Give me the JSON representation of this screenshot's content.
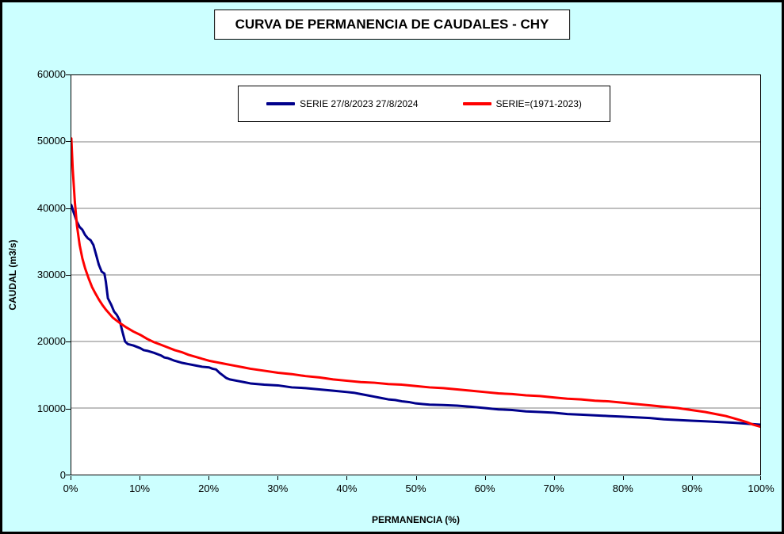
{
  "colors": {
    "background": "#CCFFFF",
    "plot_background": "#FFFFFF",
    "grid": "#7F7F7F",
    "axis": "#000000",
    "series_blue": "#00008B",
    "series_red": "#FF0000"
  },
  "chart_data": {
    "type": "line",
    "title": "CURVA DE PERMANENCIA DE CAUDALES - CHY",
    "xlabel": "PERMANENCIA (%)",
    "ylabel": "CAUDAL (m3/s)",
    "xlim": [
      0,
      100
    ],
    "ylim": [
      0,
      60000
    ],
    "x_ticks": [
      "0%",
      "10%",
      "20%",
      "30%",
      "40%",
      "50%",
      "60%",
      "70%",
      "80%",
      "90%",
      "100%"
    ],
    "y_ticks": [
      0,
      10000,
      20000,
      30000,
      40000,
      50000,
      60000
    ],
    "grid": "horizontal",
    "legend_position": "top-center-inside",
    "series": [
      {
        "name": "SERIE 27/8/2023 27/8/2024",
        "color": "#00008B",
        "width": 3,
        "points": [
          [
            0,
            40500
          ],
          [
            0.3,
            39500
          ],
          [
            0.8,
            38000
          ],
          [
            1.2,
            37200
          ],
          [
            1.6,
            36800
          ],
          [
            2,
            36000
          ],
          [
            2.4,
            35500
          ],
          [
            2.8,
            35200
          ],
          [
            3.2,
            34500
          ],
          [
            3.6,
            33000
          ],
          [
            4,
            31500
          ],
          [
            4.4,
            30500
          ],
          [
            4.8,
            30200
          ],
          [
            5,
            29000
          ],
          [
            5.3,
            26500
          ],
          [
            5.8,
            25500
          ],
          [
            6.2,
            24500
          ],
          [
            6.6,
            24000
          ],
          [
            7,
            23200
          ],
          [
            7.4,
            21500
          ],
          [
            7.8,
            20000
          ],
          [
            8.2,
            19600
          ],
          [
            9,
            19400
          ],
          [
            10,
            19000
          ],
          [
            10.5,
            18700
          ],
          [
            11,
            18600
          ],
          [
            12,
            18300
          ],
          [
            13,
            17900
          ],
          [
            13.5,
            17600
          ],
          [
            14,
            17500
          ],
          [
            15,
            17100
          ],
          [
            16,
            16800
          ],
          [
            17,
            16600
          ],
          [
            18,
            16400
          ],
          [
            19,
            16200
          ],
          [
            20,
            16100
          ],
          [
            20.5,
            15900
          ],
          [
            21,
            15800
          ],
          [
            21.5,
            15300
          ],
          [
            22,
            14900
          ],
          [
            22.5,
            14500
          ],
          [
            23,
            14300
          ],
          [
            24,
            14100
          ],
          [
            25,
            13900
          ],
          [
            26,
            13700
          ],
          [
            28,
            13500
          ],
          [
            30,
            13400
          ],
          [
            32,
            13100
          ],
          [
            34,
            13000
          ],
          [
            36,
            12800
          ],
          [
            38,
            12600
          ],
          [
            40,
            12400
          ],
          [
            41,
            12300
          ],
          [
            42,
            12100
          ],
          [
            43,
            11900
          ],
          [
            44,
            11700
          ],
          [
            45,
            11500
          ],
          [
            46,
            11300
          ],
          [
            47,
            11200
          ],
          [
            48,
            11000
          ],
          [
            49,
            10900
          ],
          [
            50,
            10700
          ],
          [
            51,
            10600
          ],
          [
            52,
            10500
          ],
          [
            54,
            10450
          ],
          [
            56,
            10350
          ],
          [
            58,
            10200
          ],
          [
            60,
            10000
          ],
          [
            62,
            9800
          ],
          [
            64,
            9700
          ],
          [
            66,
            9500
          ],
          [
            68,
            9400
          ],
          [
            70,
            9300
          ],
          [
            72,
            9100
          ],
          [
            74,
            9000
          ],
          [
            76,
            8900
          ],
          [
            78,
            8800
          ],
          [
            80,
            8700
          ],
          [
            82,
            8600
          ],
          [
            84,
            8500
          ],
          [
            86,
            8300
          ],
          [
            88,
            8200
          ],
          [
            90,
            8100
          ],
          [
            92,
            8000
          ],
          [
            94,
            7900
          ],
          [
            96,
            7800
          ],
          [
            98,
            7650
          ],
          [
            100,
            7500
          ]
        ]
      },
      {
        "name": "SERIE=(1971-2023)",
        "color": "#FF0000",
        "width": 3,
        "points": [
          [
            0,
            50500
          ],
          [
            0.2,
            46000
          ],
          [
            0.5,
            41000
          ],
          [
            0.8,
            37500
          ],
          [
            1.2,
            34500
          ],
          [
            1.6,
            32500
          ],
          [
            2,
            31000
          ],
          [
            2.5,
            29500
          ],
          [
            3,
            28200
          ],
          [
            3.5,
            27200
          ],
          [
            4,
            26300
          ],
          [
            4.5,
            25500
          ],
          [
            5,
            24800
          ],
          [
            5.5,
            24200
          ],
          [
            6,
            23600
          ],
          [
            7,
            22800
          ],
          [
            8,
            22100
          ],
          [
            9,
            21500
          ],
          [
            10,
            21000
          ],
          [
            11,
            20400
          ],
          [
            12,
            19900
          ],
          [
            13,
            19500
          ],
          [
            14,
            19100
          ],
          [
            15,
            18700
          ],
          [
            16,
            18400
          ],
          [
            17,
            18000
          ],
          [
            18,
            17700
          ],
          [
            19,
            17400
          ],
          [
            20,
            17100
          ],
          [
            21,
            16900
          ],
          [
            22,
            16700
          ],
          [
            23,
            16500
          ],
          [
            24,
            16300
          ],
          [
            25,
            16100
          ],
          [
            26,
            15900
          ],
          [
            28,
            15600
          ],
          [
            30,
            15300
          ],
          [
            32,
            15100
          ],
          [
            34,
            14800
          ],
          [
            36,
            14600
          ],
          [
            38,
            14300
          ],
          [
            40,
            14100
          ],
          [
            42,
            13900
          ],
          [
            44,
            13800
          ],
          [
            46,
            13600
          ],
          [
            48,
            13500
          ],
          [
            50,
            13300
          ],
          [
            52,
            13100
          ],
          [
            54,
            13000
          ],
          [
            56,
            12800
          ],
          [
            58,
            12600
          ],
          [
            60,
            12400
          ],
          [
            62,
            12200
          ],
          [
            64,
            12100
          ],
          [
            66,
            11900
          ],
          [
            68,
            11800
          ],
          [
            70,
            11600
          ],
          [
            72,
            11400
          ],
          [
            74,
            11300
          ],
          [
            76,
            11100
          ],
          [
            78,
            11000
          ],
          [
            80,
            10800
          ],
          [
            82,
            10600
          ],
          [
            84,
            10400
          ],
          [
            86,
            10200
          ],
          [
            88,
            10000
          ],
          [
            90,
            9700
          ],
          [
            92,
            9400
          ],
          [
            94,
            9000
          ],
          [
            95,
            8800
          ],
          [
            96,
            8500
          ],
          [
            97,
            8200
          ],
          [
            98,
            7900
          ],
          [
            99,
            7500
          ],
          [
            100,
            7200
          ]
        ]
      }
    ]
  }
}
